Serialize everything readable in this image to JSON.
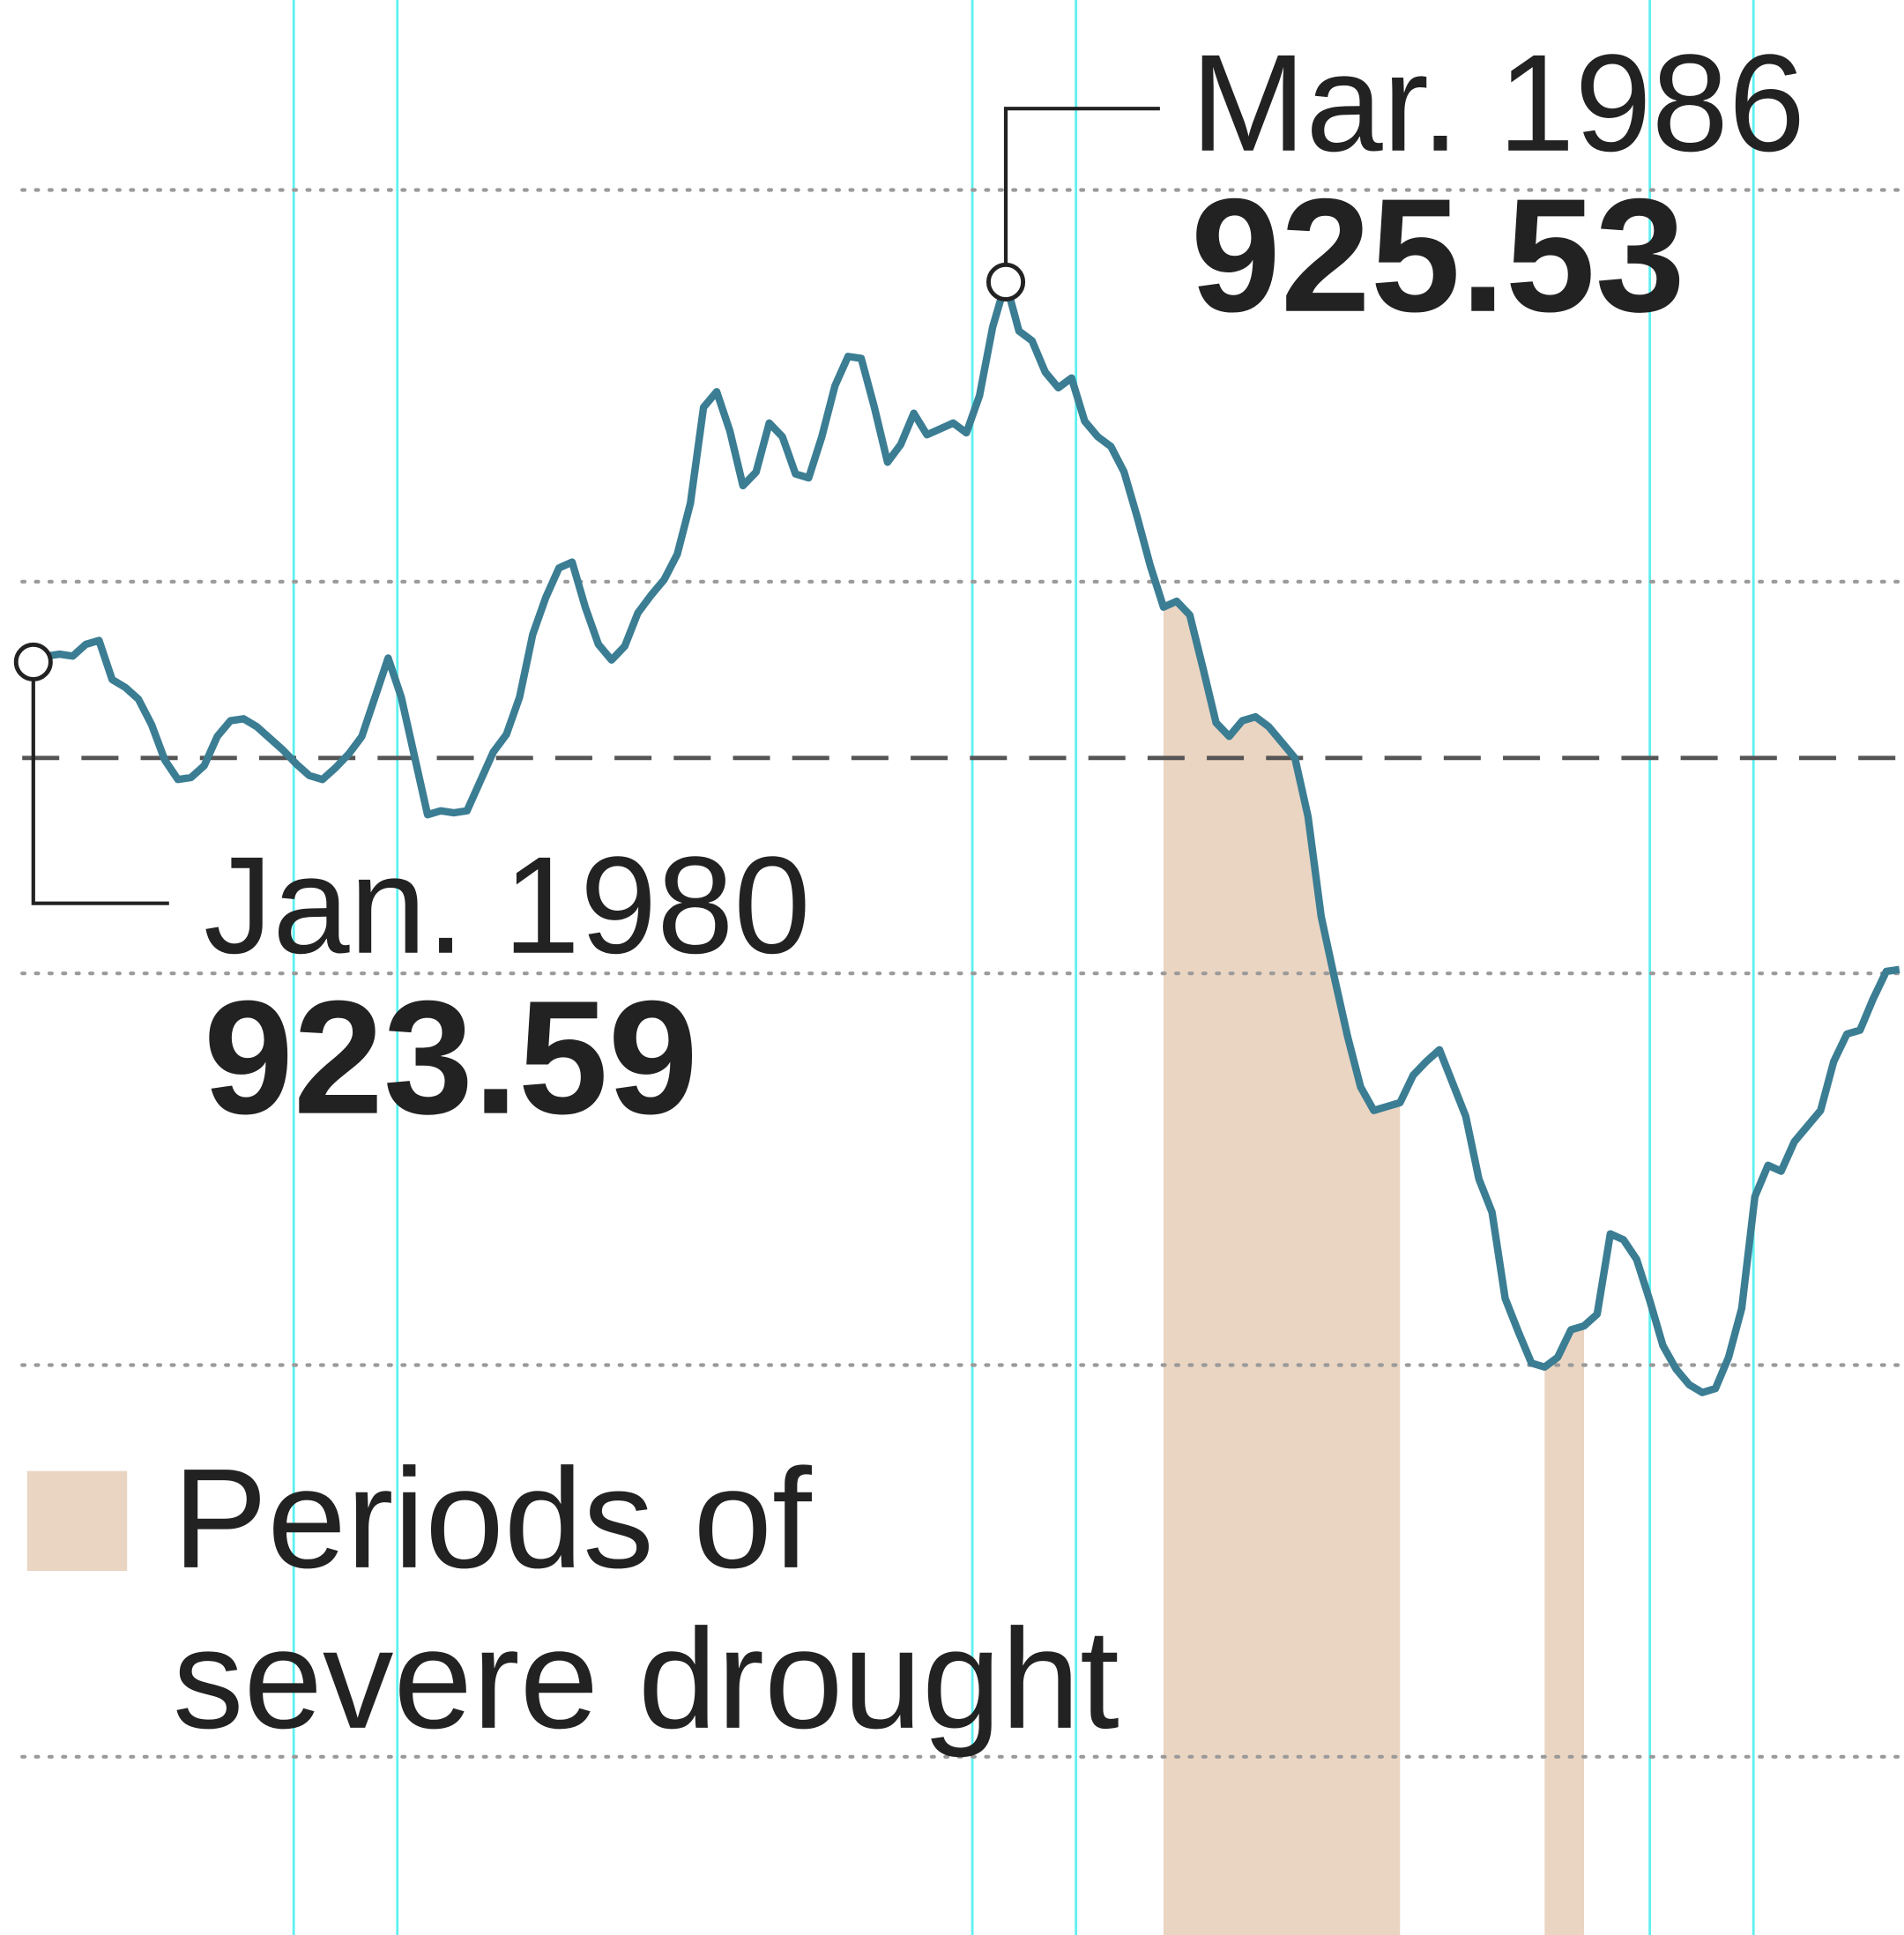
{
  "chart_data": {
    "type": "line",
    "x": [
      "1980-01",
      "1980-02",
      "1980-03",
      "1980-04",
      "1980-05",
      "1980-06",
      "1980-07",
      "1980-08",
      "1980-09",
      "1980-10",
      "1980-11",
      "1980-12",
      "1981-01",
      "1981-02",
      "1981-03",
      "1981-04",
      "1981-05",
      "1981-06",
      "1981-07",
      "1981-08",
      "1981-09",
      "1981-10",
      "1981-11",
      "1981-12",
      "1982-01",
      "1982-02",
      "1982-03",
      "1982-04",
      "1982-05",
      "1982-06",
      "1982-07",
      "1982-08",
      "1982-09",
      "1982-10",
      "1982-11",
      "1982-12",
      "1983-01",
      "1983-02",
      "1983-03",
      "1983-04",
      "1983-05",
      "1983-06",
      "1983-07",
      "1983-08",
      "1983-09",
      "1983-10",
      "1983-11",
      "1983-12",
      "1984-01",
      "1984-02",
      "1984-03",
      "1984-04",
      "1984-05",
      "1984-06",
      "1984-07",
      "1984-08",
      "1984-09",
      "1984-10",
      "1984-11",
      "1984-12",
      "1985-01",
      "1985-02",
      "1985-03",
      "1985-04",
      "1985-05",
      "1985-06",
      "1985-07",
      "1985-08",
      "1985-09",
      "1985-10",
      "1985-11",
      "1985-12",
      "1986-01",
      "1986-02",
      "1986-03",
      "1986-04",
      "1986-05",
      "1986-06",
      "1986-07",
      "1986-08",
      "1986-09",
      "1986-10",
      "1986-11",
      "1986-12",
      "1987-01",
      "1987-02",
      "1987-03",
      "1987-04",
      "1987-05",
      "1987-06",
      "1987-07",
      "1987-08",
      "1987-09",
      "1987-10",
      "1987-11",
      "1987-12",
      "1988-01",
      "1988-02",
      "1988-03",
      "1988-04",
      "1988-05",
      "1988-06",
      "1988-07",
      "1988-08",
      "1988-09",
      "1988-10",
      "1988-11",
      "1988-12",
      "1989-01",
      "1989-02",
      "1989-03",
      "1989-04",
      "1989-05",
      "1989-06",
      "1989-07",
      "1989-08",
      "1989-09",
      "1989-10",
      "1989-11",
      "1989-12",
      "1990-01",
      "1990-02",
      "1990-03",
      "1990-04",
      "1990-05",
      "1990-06",
      "1990-07",
      "1990-08",
      "1990-09",
      "1990-10",
      "1990-11",
      "1990-12",
      "1991-01",
      "1991-02",
      "1991-03",
      "1991-04",
      "1991-05",
      "1991-06",
      "1991-07",
      "1991-08",
      "1991-09",
      "1991-10",
      "1991-11"
    ],
    "series": [
      {
        "color": "#3b7d93",
        "values": [
          923.59,
          923.62,
          923.63,
          923.62,
          923.68,
          923.7,
          923.5,
          923.46,
          923.4,
          923.27,
          923.09,
          922.99,
          923.0,
          923.06,
          923.21,
          923.29,
          923.3,
          923.26,
          923.2,
          923.14,
          923.07,
          923.01,
          922.99,
          923.05,
          923.12,
          923.21,
          923.41,
          923.61,
          923.41,
          923.11,
          922.81,
          922.83,
          922.82,
          922.83,
          922.98,
          923.13,
          923.22,
          923.41,
          923.73,
          923.92,
          924.07,
          924.1,
          923.87,
          923.68,
          923.6,
          923.67,
          923.84,
          923.93,
          924.01,
          924.14,
          924.4,
          924.89,
          924.97,
          924.77,
          924.49,
          924.56,
          924.81,
          924.74,
          924.55,
          924.53,
          924.74,
          925.0,
          925.15,
          925.14,
          924.89,
          924.61,
          924.7,
          924.86,
          924.75,
          924.78,
          924.81,
          924.76,
          924.95,
          925.3,
          925.53,
          925.28,
          925.23,
          925.07,
          924.99,
          925.04,
          924.82,
          924.74,
          924.69,
          924.56,
          924.33,
          924.08,
          923.87,
          923.9,
          923.83,
          923.56,
          923.28,
          923.21,
          923.29,
          923.31,
          923.26,
          923.18,
          923.1,
          922.8,
          922.29,
          921.98,
          921.68,
          921.42,
          921.3,
          921.32,
          921.34,
          921.48,
          921.55,
          921.61,
          921.44,
          921.27,
          920.95,
          920.78,
          920.34,
          920.17,
          920.01,
          919.99,
          920.04,
          920.18,
          920.2,
          920.26,
          920.67,
          920.64,
          920.54,
          920.33,
          920.1,
          919.98,
          919.9,
          919.86,
          919.88,
          920.04,
          920.29,
          920.86,
          921.02,
          920.99,
          921.14,
          921.22,
          921.3,
          921.55,
          921.69,
          921.71,
          921.87,
          922.01,
          922.02
        ]
      }
    ],
    "ylim": [
      917.09,
      926.97
    ],
    "yticks": [
      918,
      920,
      922,
      924,
      926
    ],
    "grid": true,
    "reference_line": 923.1,
    "drought_periods": [
      {
        "start": "1987-03",
        "end": "1988-09"
      },
      {
        "start": "1989-08",
        "end": "1989-11"
      }
    ],
    "legend": {
      "label_lines": [
        "Periods of",
        "severe drought"
      ],
      "color": "#ead5c2"
    },
    "annotations": [
      {
        "x": "1980-01",
        "label": "Jan. 1980",
        "value": 923.59
      },
      {
        "x": "1986-03",
        "label": "Mar. 1986",
        "value": 925.53
      }
    ]
  }
}
